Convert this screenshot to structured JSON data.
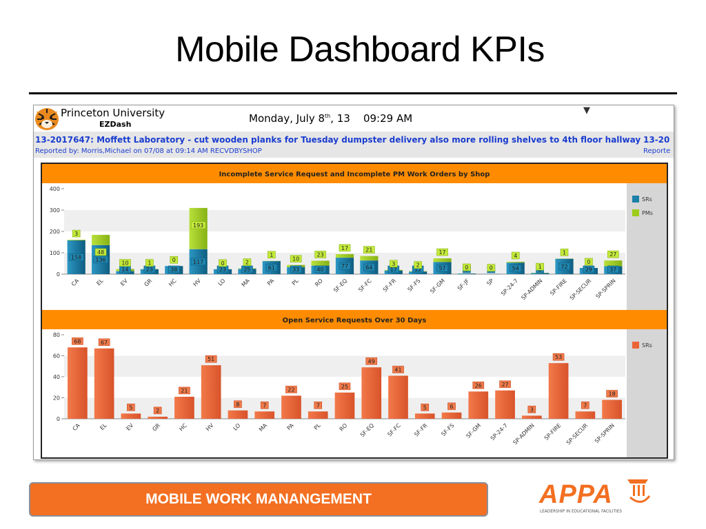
{
  "slide": {
    "title": "Mobile Dashboard KPIs",
    "footer": "MOBILE WORK MANANGEMENT"
  },
  "logo": {
    "text": "APPA",
    "tagline": "LEADERSHIP IN EDUCATIONAL FACILITIES"
  },
  "header": {
    "org": "Princeton University",
    "app": "EZDash",
    "date_prefix": "Monday, July 8",
    "date_sup": "th",
    "date_suffix": ", 13    09:29 AM"
  },
  "ticker": {
    "line1": "13-2017647: Moffett Laboratory - cut wooden planks for Tuesday dumpster delivery also more rolling shelves to 4th floor hallway",
    "line2": "Reported by: Morris,Michael on 07/08 at 09:14 AM RECVDBYSHOP",
    "line1_next": "13-20",
    "line2_next": "Reporte"
  },
  "colors": {
    "sr": "#1b7fa8",
    "sr_dark": "#0e5d80",
    "pm": "#9ccc1a",
    "open": "#ea6536",
    "accent": "#ff8c00"
  },
  "chart_data": [
    {
      "type": "bar",
      "title": "Incomplete Service Request and Incomplete PM Work Orders by Shop",
      "categories": [
        "CA",
        "EL",
        "EV",
        "GR",
        "HC",
        "HV",
        "LO",
        "MA",
        "PA",
        "PL",
        "RO",
        "SF-EQ",
        "SF-FC",
        "SF-FR",
        "SF-FS",
        "SF-GM",
        "SF-JF",
        "SP",
        "SP-24-7",
        "SP-ADMIN",
        "SP-FIRE",
        "SP-SECUR",
        "SP-SPRIN"
      ],
      "series": [
        {
          "name": "SRs",
          "values": [
            158,
            136,
            14,
            23,
            38,
            117,
            23,
            25,
            61,
            33,
            40,
            77,
            64,
            17,
            12,
            57,
            3,
            1,
            54,
            5,
            72,
            29,
            37
          ]
        },
        {
          "name": "PMs",
          "values": [
            3,
            48,
            10,
            1,
            0,
            193,
            0,
            2,
            1,
            10,
            23,
            17,
            21,
            3,
            2,
            17,
            0,
            0,
            4,
            1,
            1,
            0,
            27
          ]
        }
      ],
      "stacked": true,
      "ylim": [
        0,
        400
      ],
      "yticks": [
        0,
        100,
        200,
        300,
        400
      ],
      "legend": "right",
      "grid": true
    },
    {
      "type": "bar",
      "title": "Open Service Requests Over 30 Days",
      "categories": [
        "CA",
        "EL",
        "EV",
        "GR",
        "HC",
        "HV",
        "LO",
        "MA",
        "PA",
        "PL",
        "RO",
        "SF-EQ",
        "SF-FC",
        "SF-FR",
        "SF-FS",
        "SF-GM",
        "SP-24-7",
        "SP-ADMIN",
        "SP-FIRE",
        "SP-SECUR",
        "SP-SPRIN"
      ],
      "series": [
        {
          "name": "SRs",
          "values": [
            68,
            67,
            5,
            2,
            21,
            51,
            8,
            7,
            22,
            7,
            25,
            49,
            41,
            5,
            6,
            26,
            27,
            3,
            53,
            7,
            18
          ]
        }
      ],
      "ylim": [
        0,
        80
      ],
      "yticks": [
        0,
        20,
        40,
        60,
        80
      ],
      "legend": "right",
      "grid": true
    }
  ]
}
